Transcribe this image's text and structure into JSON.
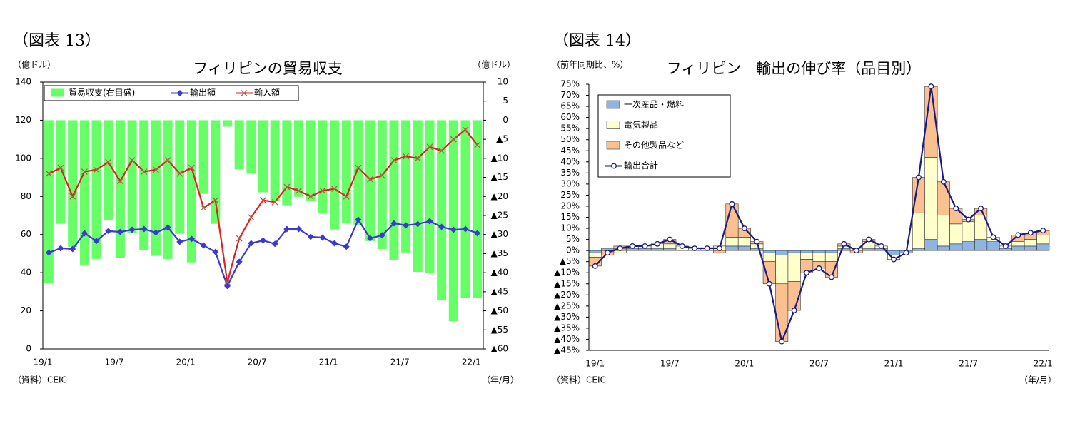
{
  "chart_data": [
    {
      "type": "combo",
      "panel_label": "（図表 13）",
      "title": "フィリピンの貿易収支",
      "y_label": "（億ドル）",
      "y2_label": "（億ドル）",
      "source": "（資料）CEIC",
      "x_label": "（年/月）",
      "categories": [
        "19/1",
        null,
        null,
        null,
        null,
        null,
        "19/7",
        null,
        null,
        null,
        null,
        null,
        "20/1",
        null,
        null,
        null,
        null,
        null,
        "20/7",
        null,
        null,
        null,
        null,
        null,
        "21/1",
        null,
        null,
        null,
        null,
        null,
        "21/7",
        null,
        null,
        null,
        null,
        null,
        "22/1"
      ],
      "ylim": [
        0,
        140
      ],
      "yticks": [
        0,
        20,
        40,
        60,
        80,
        100,
        120,
        140
      ],
      "y2lim": [
        -60,
        10
      ],
      "y2ticks": [
        10,
        5,
        0,
        {
          "value": -5,
          "label": "▲5"
        },
        {
          "value": -10,
          "label": "▲10"
        },
        {
          "value": -15,
          "label": "▲15"
        },
        {
          "value": -20,
          "label": "▲20"
        },
        {
          "value": -25,
          "label": "▲25"
        },
        {
          "value": -30,
          "label": "▲30"
        },
        {
          "value": -35,
          "label": "▲35"
        },
        {
          "value": -40,
          "label": "▲40"
        },
        {
          "value": -45,
          "label": "▲45"
        },
        {
          "value": -50,
          "label": "▲50"
        },
        {
          "value": -55,
          "label": "▲55"
        },
        {
          "value": -60,
          "label": "▲60"
        }
      ],
      "grid": false,
      "stacked": false,
      "legend": "top-left",
      "series": [
        {
          "name": "貿易収支(右目盛)",
          "type": "bar",
          "axis": "y2",
          "color": "#66ff66",
          "values": [
            -42.8,
            -27.2,
            -33.2,
            -37.9,
            -36.4,
            -26.3,
            -36.2,
            -29.6,
            -34.1,
            -35.6,
            -36.4,
            -29.8,
            -37.3,
            -19.3,
            -27.2,
            -1.7,
            -12.9,
            -13.9,
            -18.9,
            -21.2,
            -22.3,
            -20.1,
            -21.2,
            -24.4,
            -28.7,
            -27,
            -27.4,
            -31.7,
            -33.8,
            -36.6,
            -34.7,
            -39.8,
            -40.1,
            -47.1,
            -52.7,
            -46.7,
            -46.7
          ]
        },
        {
          "name": "輸出額",
          "type": "line",
          "marker": "diamond",
          "color": "#3a3ad0",
          "values": [
            50.5,
            52.8,
            52.4,
            60.7,
            56.6,
            61.8,
            61.4,
            62.5,
            62.9,
            61,
            63.7,
            56.2,
            57.7,
            54.3,
            50.9,
            33,
            45.7,
            55.4,
            56.9,
            55.1,
            62.9,
            62.9,
            58.8,
            58.4,
            55.4,
            53.6,
            67.8,
            58,
            59.6,
            65.9,
            64.8,
            65.5,
            67,
            64,
            62.5,
            62.9,
            60.7
          ]
        },
        {
          "name": "輸入額",
          "type": "line",
          "marker": "x",
          "color": "#dd2020",
          "values": [
            92,
            95,
            80,
            93,
            94,
            98,
            88,
            99,
            93,
            94,
            99,
            92,
            95,
            74,
            78,
            35,
            58,
            69,
            78,
            77,
            85,
            83,
            80,
            83,
            84,
            80,
            95,
            89,
            91,
            99,
            101,
            100,
            106,
            104,
            110,
            115,
            107
          ]
        }
      ]
    },
    {
      "type": "combo",
      "panel_label": "（図表 14）",
      "title": "フィリピン　輸出の伸び率（品目別）",
      "y_label": "（前年同期比、%）",
      "source": "（資料）CEIC",
      "x_label": "（年/月）",
      "categories": [
        "19/1",
        null,
        null,
        null,
        null,
        null,
        "19/7",
        null,
        null,
        null,
        null,
        null,
        "20/1",
        null,
        null,
        null,
        null,
        null,
        "20/7",
        null,
        null,
        null,
        null,
        null,
        "21/1",
        null,
        null,
        null,
        null,
        null,
        "21/7",
        null,
        null,
        null,
        null,
        null,
        "22/1"
      ],
      "ylim": [
        -45,
        75
      ],
      "yticks": [
        {
          "value": 75,
          "label": "75%"
        },
        {
          "value": 70,
          "label": "70%"
        },
        {
          "value": 65,
          "label": "65%"
        },
        {
          "value": 60,
          "label": "60%"
        },
        {
          "value": 55,
          "label": "55%"
        },
        {
          "value": 50,
          "label": "50%"
        },
        {
          "value": 45,
          "label": "45%"
        },
        {
          "value": 40,
          "label": "40%"
        },
        {
          "value": 35,
          "label": "35%"
        },
        {
          "value": 30,
          "label": "30%"
        },
        {
          "value": 25,
          "label": "25%"
        },
        {
          "value": 20,
          "label": "20%"
        },
        {
          "value": 15,
          "label": "15%"
        },
        {
          "value": 10,
          "label": "10%"
        },
        {
          "value": 5,
          "label": "5%"
        },
        {
          "value": 0,
          "label": "0%"
        },
        {
          "value": -5,
          "label": "▲5%"
        },
        {
          "value": -10,
          "label": "▲10%"
        },
        {
          "value": -15,
          "label": "▲15%"
        },
        {
          "value": -20,
          "label": "▲20%"
        },
        {
          "value": -25,
          "label": "▲25%"
        },
        {
          "value": -30,
          "label": "▲30%"
        },
        {
          "value": -35,
          "label": "▲35%"
        },
        {
          "value": -40,
          "label": "▲40%"
        },
        {
          "value": -45,
          "label": "▲45%"
        }
      ],
      "grid": false,
      "stacked": true,
      "legend": "top-left",
      "series": [
        {
          "name": "一次産品・燃料",
          "type": "bar",
          "color": "#8db4e2",
          "values": [
            -1,
            1,
            1,
            1,
            1,
            1,
            1,
            0,
            0,
            0,
            0,
            2,
            2,
            1,
            -1,
            -2,
            -1,
            -1,
            -1,
            -1,
            1,
            0,
            1,
            1,
            -2,
            -1,
            1,
            5,
            2,
            3,
            4,
            5,
            4,
            1,
            2,
            2,
            3
          ]
        },
        {
          "name": "電気製品",
          "type": "bar",
          "color": "#ffffcc",
          "values": [
            -2,
            0,
            -1,
            1,
            1,
            2,
            2,
            2,
            1,
            1,
            2,
            4,
            4,
            2,
            -4,
            -13,
            -13,
            -3,
            -4,
            -4,
            1,
            1,
            3,
            1,
            -2,
            0,
            16,
            37,
            14,
            9,
            9,
            11,
            2,
            1,
            2,
            3,
            4
          ]
        },
        {
          "name": "その他製品など",
          "type": "bar",
          "color": "#fac090",
          "values": [
            -4,
            -2,
            1,
            0,
            0,
            0,
            2,
            0,
            0,
            0,
            -1,
            15,
            4,
            1,
            -10,
            -26,
            -13,
            -6,
            -3,
            -7,
            1,
            -1,
            1,
            0,
            0,
            0,
            16,
            32,
            15,
            7,
            1,
            3,
            0,
            0,
            3,
            3,
            2
          ]
        },
        {
          "name": "輸出合計",
          "type": "line",
          "marker": "circle",
          "color": "#1a1a80",
          "values": [
            -7,
            -1,
            1,
            2,
            2,
            3,
            5,
            2,
            1,
            1,
            1,
            21,
            10,
            4,
            -15,
            -41,
            -27,
            -10,
            -8,
            -12,
            3,
            0,
            5,
            2,
            -4,
            -1,
            33,
            74,
            31,
            19,
            14,
            19,
            6,
            2,
            7,
            8,
            9
          ]
        }
      ]
    }
  ]
}
